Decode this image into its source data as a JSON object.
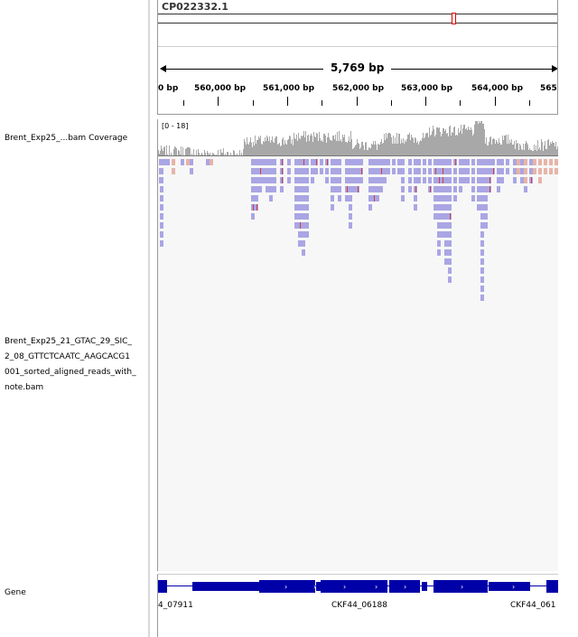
{
  "ruler": {
    "chromosome": "CP022332.1",
    "span_label": "5,769 bp",
    "ticks": [
      "0 bp",
      "560,000 bp",
      "561,000 bp",
      "562,000 bp",
      "563,000 bp",
      "564,000 bp",
      "565"
    ],
    "ideogram_mark_color": "#e00000"
  },
  "tracks": {
    "coverage_label": "Brent_Exp25_...bam Coverage",
    "coverage_range": "[0 - 18]",
    "alignment_label": "Brent_Exp25_21_GTAC_29_SIC_\n2_08_GTTCTCAATC_AAGCACG1\n001_sorted_aligned_reads_with_\nnote.bam",
    "gene_label": "Gene"
  },
  "genes": {
    "names": [
      "4_07911",
      "CKF44_06188",
      "CKF44_061"
    ],
    "color": "#0000a8"
  },
  "colors": {
    "read": "#aaa6e4",
    "read_reverse": "#e8b4a8",
    "coverage": "#a8a8a8",
    "mismatch": "#d04040"
  }
}
